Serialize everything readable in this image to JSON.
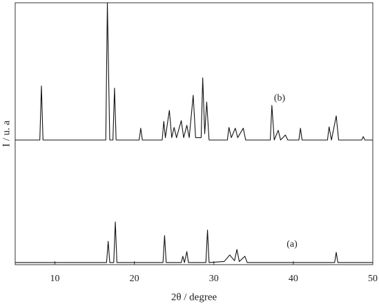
{
  "chart_data": {
    "type": "line",
    "x_label": "2θ / degree",
    "y_label": "I / u. a",
    "xlim": [
      5,
      50
    ],
    "ylim": [
      0,
      100
    ],
    "xticks": [
      10,
      20,
      30,
      40,
      50
    ],
    "series": [
      {
        "name": "(b)",
        "color": "#111111",
        "x": [
          5,
          8.1,
          8.3,
          8.5,
          16.4,
          16.6,
          16.9,
          17.3,
          17.5,
          17.7,
          20.6,
          20.8,
          21.0,
          23.5,
          23.7,
          23.9,
          24.4,
          24.7,
          25.0,
          25.3,
          25.9,
          26.2,
          26.6,
          26.9,
          27.4,
          27.7,
          28.4,
          28.6,
          28.85,
          29.1,
          29.4,
          31.7,
          31.9,
          32.2,
          32.7,
          33.0,
          33.7,
          34.0,
          37.1,
          37.3,
          37.6,
          38.1,
          38.4,
          39.0,
          39.3,
          40.7,
          40.9,
          41.1,
          44.3,
          44.5,
          44.8,
          45.4,
          45.7,
          48.6,
          48.8,
          49.0,
          50
        ],
        "values": [
          47.6,
          47.6,
          68.2,
          47.6,
          47.6,
          100,
          47.6,
          47.6,
          67.4,
          47.6,
          47.6,
          52.1,
          47.6,
          47.6,
          54.7,
          48.5,
          58.9,
          48.5,
          52.4,
          48.5,
          55,
          48.5,
          53.2,
          48.5,
          64.7,
          48.5,
          48.5,
          71.3,
          50,
          62.1,
          47.6,
          47.6,
          52.4,
          48.5,
          52.1,
          48.5,
          52.1,
          47.6,
          47.6,
          60.8,
          47.6,
          51.3,
          47.6,
          49.5,
          47.6,
          47.6,
          52.1,
          47.6,
          47.6,
          52.6,
          47.6,
          56.8,
          47.6,
          47.6,
          48.9,
          47.6,
          47.6
        ]
      },
      {
        "name": "(a)",
        "color": "#111111",
        "x": [
          5,
          16.5,
          16.7,
          16.9,
          17.4,
          17.6,
          17.8,
          23.6,
          23.8,
          24.0,
          25.9,
          26.1,
          26.3,
          26.6,
          26.8,
          29.0,
          29.2,
          29.4,
          31.3,
          32.0,
          32.6,
          32.9,
          33.2,
          33.9,
          34.2,
          45.2,
          45.4,
          45.6,
          50
        ],
        "values": [
          0.8,
          0.8,
          8.9,
          0.8,
          0.8,
          16.3,
          0.8,
          0.8,
          11.1,
          0.8,
          0.8,
          3.2,
          0.8,
          5,
          0.8,
          0.8,
          13.2,
          0.8,
          1.2,
          3.7,
          1.5,
          5.8,
          1.2,
          3.2,
          0.8,
          0.8,
          4.7,
          0.8,
          0.8
        ]
      }
    ]
  }
}
